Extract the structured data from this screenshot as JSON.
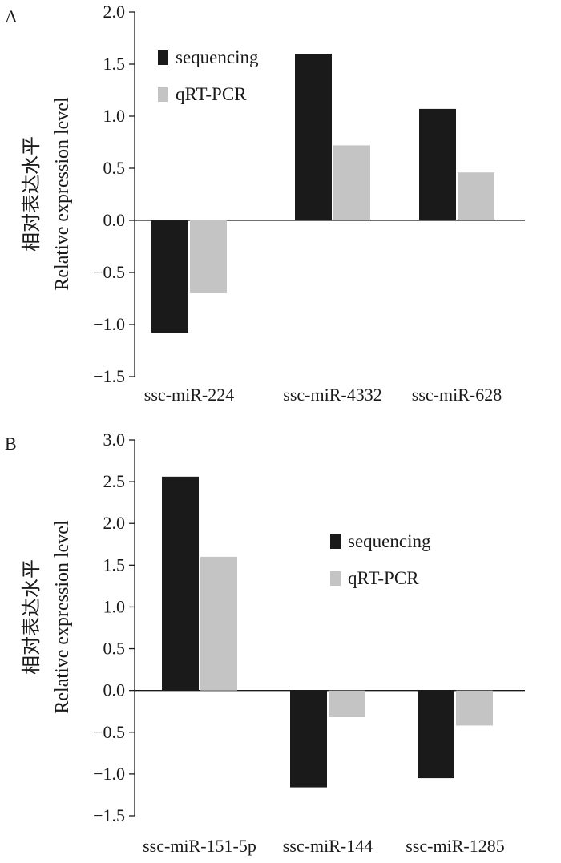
{
  "chart_data": [
    {
      "panel_label": "A",
      "type": "bar",
      "ylabel_cn": "相对表达水平",
      "ylabel": "Relative expression level",
      "categories": [
        "ssc-miR-224",
        "ssc-miR-4332",
        "ssc-miR-628"
      ],
      "series": [
        {
          "name": "sequencing",
          "values": [
            -1.08,
            1.6,
            1.07
          ],
          "color": "#1a1a1a"
        },
        {
          "name": "qRT-PCR",
          "values": [
            -0.7,
            0.72,
            0.46
          ],
          "color": "#c4c4c4"
        }
      ],
      "ylim": [
        -1.5,
        2.0
      ],
      "yticks": [
        "2.0",
        "1.5",
        "1.0",
        "0.5",
        "0.0",
        "-0.5",
        "-1.0",
        "-1.5"
      ],
      "grid": false,
      "legend_position": "top-left"
    },
    {
      "panel_label": "B",
      "type": "bar",
      "ylabel_cn": "相对表达水平",
      "ylabel": "Relative expression level",
      "categories": [
        "ssc-miR-151-5p",
        "ssc-miR-144",
        "ssc-miR-1285"
      ],
      "series": [
        {
          "name": "sequencing",
          "values": [
            2.56,
            -1.16,
            -1.05
          ],
          "color": "#1a1a1a"
        },
        {
          "name": "qRT-PCR",
          "values": [
            1.6,
            -0.32,
            -0.42
          ],
          "color": "#c4c4c4"
        }
      ],
      "ylim": [
        -1.5,
        3.0
      ],
      "yticks": [
        "3.0",
        "2.5",
        "2.0",
        "1.5",
        "1.0",
        "0.5",
        "0.0",
        "-0.5",
        "-1.0",
        "-1.5"
      ],
      "grid": false,
      "legend_position": "center-right"
    }
  ]
}
